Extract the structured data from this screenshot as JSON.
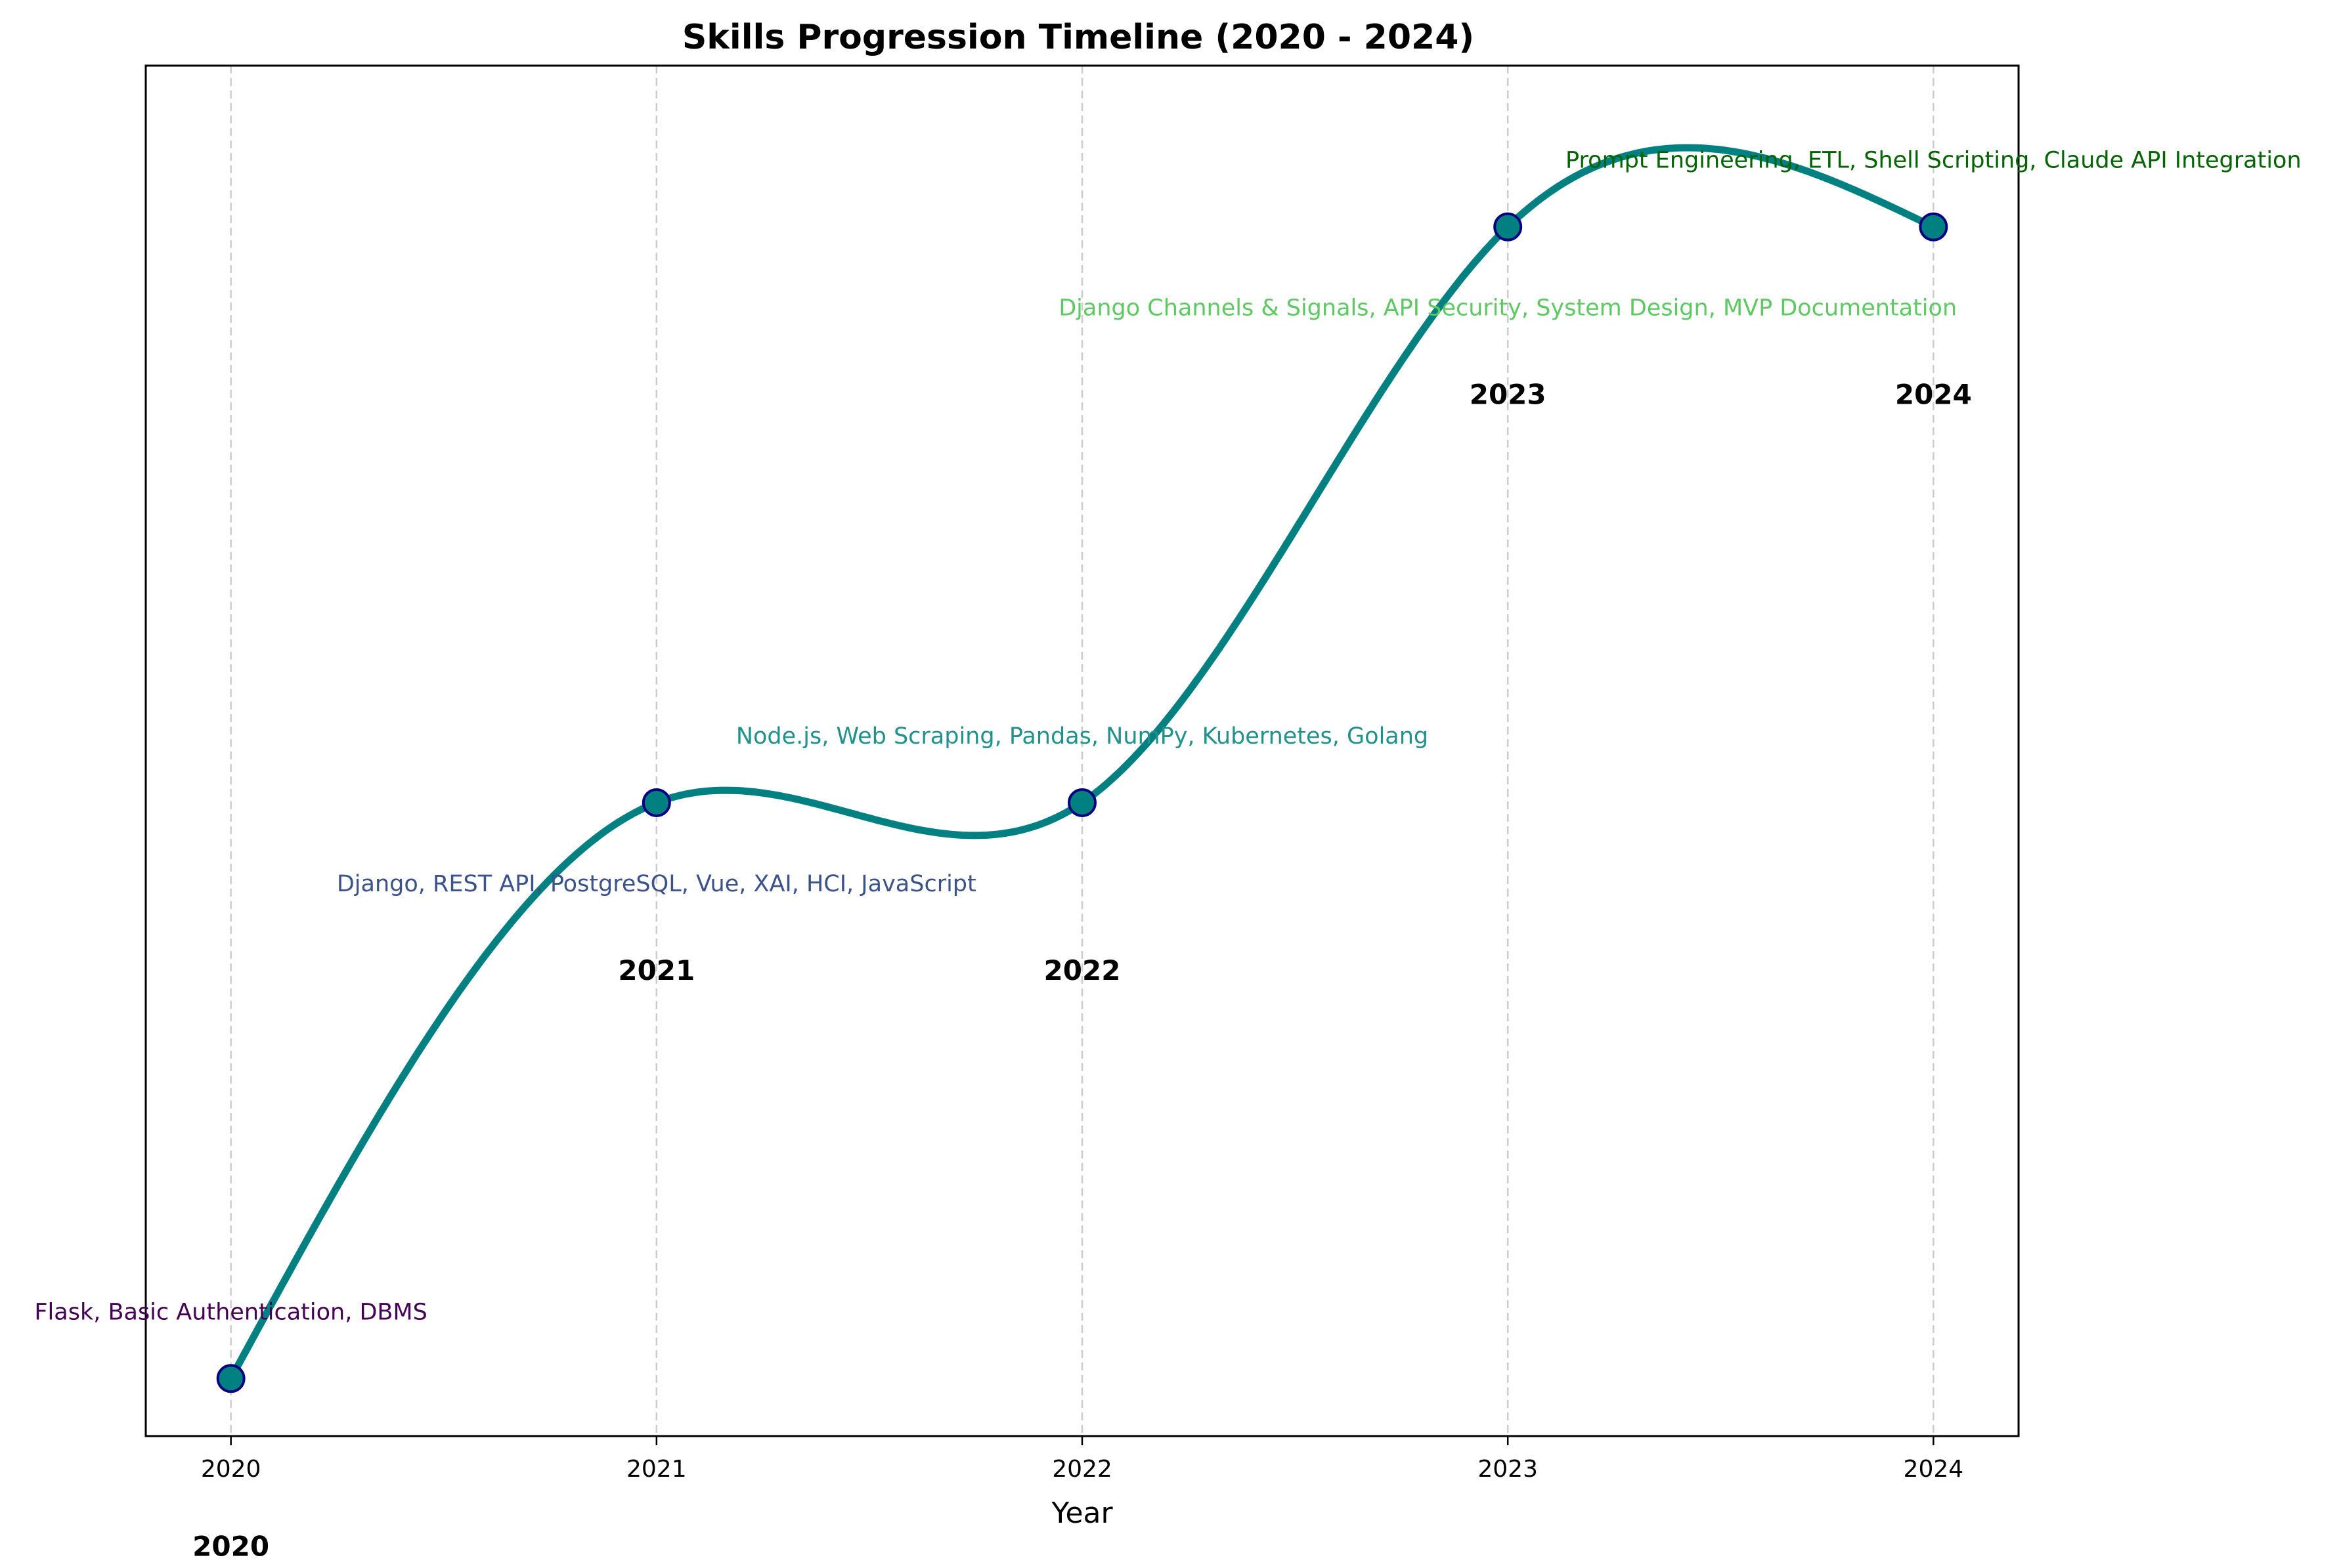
{
  "chart_data": {
    "type": "line",
    "title": "Skills Progression Timeline (2020 - 2024)",
    "xlabel": "Year",
    "ylabel": "",
    "x": [
      2020,
      2021,
      2022,
      2023,
      2024
    ],
    "y": [
      0,
      1,
      1,
      2,
      2
    ],
    "ylim": [
      -0.1,
      2.28
    ],
    "xlim": [
      2019.8,
      2024.2
    ],
    "x_tick_labels": [
      "2020",
      "2021",
      "2022",
      "2023",
      "2024"
    ],
    "year_labels": [
      "2020",
      "2021",
      "2022",
      "2023",
      "2024"
    ],
    "grid": "vertical dashed",
    "line_color": "#008080",
    "marker_fill": "#008080",
    "marker_edge": "#000080",
    "annotations": [
      {
        "text": "Flask, Basic Authentication, DBMS",
        "color": "#440154"
      },
      {
        "text": "Django, REST API, PostgreSQL, Vue, XAI, HCI, JavaScript",
        "color": "#3b528b"
      },
      {
        "text": "Node.js, Web Scraping, Pandas, NumPy, Kubernetes, Golang",
        "color": "#21918c"
      },
      {
        "text": "Django Channels & Signals, API Security, System Design, MVP Documentation",
        "color": "#5ec962"
      },
      {
        "text": "Prompt Engineering, ETL, Shell Scripting, Claude API Integration",
        "color": "#006400"
      }
    ]
  }
}
